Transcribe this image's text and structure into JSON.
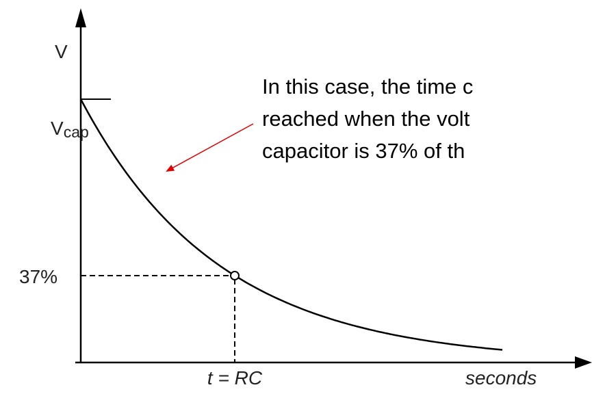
{
  "axis": {
    "y_label": "V",
    "x_label": "seconds"
  },
  "labels": {
    "vcap": {
      "main": "V",
      "sub": "cap"
    },
    "percent": "37%",
    "time_constant": "t = RC"
  },
  "note": {
    "lines": [
      "In this case, the time c",
      "reached when the volt",
      "capacitor is 37% of th"
    ]
  }
}
